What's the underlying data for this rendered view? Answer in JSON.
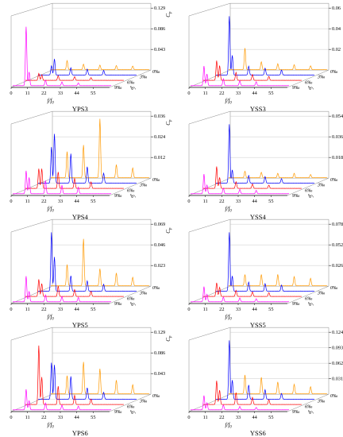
{
  "figure": {
    "x_axis_label": "f/f",
    "x_axis_label_sub": "0",
    "z_axis_label": "δ",
    "z_axis_label_sub": "j",
    "y_axis_label": "C",
    "y_axis_label_sub": "p",
    "x_ticks": [
      "0",
      "11",
      "22",
      "33",
      "44",
      "55"
    ],
    "depth_labels": [
      "0‰",
      "3‰",
      "6‰",
      "9‰"
    ],
    "series_colors": [
      "#ff9900",
      "#0000ff",
      "#ff0000",
      "#ff00ff"
    ]
  },
  "chart_data": [
    {
      "type": "line",
      "title": "YPS3",
      "y_ticks": [
        "0.043",
        "0.086",
        "0.129"
      ],
      "ylim": [
        0,
        0.129
      ],
      "xlim": [
        0,
        66
      ],
      "series": [
        {
          "name": "0‰",
          "peaks": [
            [
              11,
              0.02
            ],
            [
              22,
              0.012
            ],
            [
              33,
              0.01
            ],
            [
              44,
              0.009
            ],
            [
              55,
              0.008
            ]
          ]
        },
        {
          "name": "3‰",
          "peaks": [
            [
              9,
              0.02
            ],
            [
              11,
              0.035
            ],
            [
              22,
              0.016
            ],
            [
              33,
              0.013
            ],
            [
              44,
              0.01
            ]
          ]
        },
        {
          "name": "6‰",
          "peaks": [
            [
              9,
              0.015
            ],
            [
              11,
              0.012
            ],
            [
              22,
              0.01
            ],
            [
              33,
              0.008
            ],
            [
              44,
              0.006
            ]
          ]
        },
        {
          "name": "9‰",
          "peaks": [
            [
              9,
              0.129
            ],
            [
              11,
              0.03
            ],
            [
              22,
              0.012
            ],
            [
              33,
              0.008
            ],
            [
              44,
              0.006
            ]
          ]
        }
      ]
    },
    {
      "type": "line",
      "title": "YSS3",
      "y_ticks": [
        "0.02",
        "0.04",
        "0.06"
      ],
      "ylim": [
        0,
        0.06
      ],
      "xlim": [
        0,
        66
      ],
      "series": [
        {
          "name": "0‰",
          "peaks": [
            [
              11,
              0.022
            ],
            [
              22,
              0.008
            ],
            [
              33,
              0.006
            ],
            [
              44,
              0.005
            ],
            [
              55,
              0.004
            ]
          ]
        },
        {
          "name": "3‰",
          "peaks": [
            [
              9,
              0.06
            ],
            [
              11,
              0.02
            ],
            [
              22,
              0.009
            ],
            [
              33,
              0.007
            ],
            [
              44,
              0.005
            ]
          ]
        },
        {
          "name": "6‰",
          "peaks": [
            [
              9,
              0.02
            ],
            [
              11,
              0.015
            ],
            [
              22,
              0.008
            ],
            [
              33,
              0.006
            ],
            [
              44,
              0.004
            ]
          ]
        },
        {
          "name": "9‰",
          "peaks": [
            [
              9,
              0.02
            ],
            [
              11,
              0.012
            ],
            [
              22,
              0.007
            ],
            [
              33,
              0.005
            ],
            [
              44,
              0.004
            ]
          ]
        }
      ]
    },
    {
      "type": "line",
      "title": "YPS4",
      "y_ticks": [
        "0.012",
        "0.024",
        "0.036"
      ],
      "ylim": [
        0,
        0.036
      ],
      "xlim": [
        0,
        66
      ],
      "series": [
        {
          "name": "0‰",
          "peaks": [
            [
              11,
              0.016
            ],
            [
              22,
              0.02
            ],
            [
              33,
              0.036
            ],
            [
              44,
              0.008
            ],
            [
              55,
              0.006
            ]
          ]
        },
        {
          "name": "3‰",
          "peaks": [
            [
              9,
              0.022
            ],
            [
              11,
              0.03
            ],
            [
              22,
              0.018
            ],
            [
              33,
              0.01
            ],
            [
              44,
              0.006
            ]
          ]
        },
        {
          "name": "6‰",
          "peaks": [
            [
              9,
              0.012
            ],
            [
              11,
              0.012
            ],
            [
              22,
              0.01
            ],
            [
              33,
              0.006
            ],
            [
              44,
              0.004
            ]
          ]
        },
        {
          "name": "9‰",
          "peaks": [
            [
              9,
              0.014
            ],
            [
              11,
              0.01
            ],
            [
              22,
              0.008
            ],
            [
              33,
              0.005
            ],
            [
              44,
              0.004
            ]
          ]
        }
      ]
    },
    {
      "type": "line",
      "title": "YSS4",
      "y_ticks": [
        "0.018",
        "0.036",
        "0.054"
      ],
      "ylim": [
        0,
        0.054
      ],
      "xlim": [
        0,
        66
      ],
      "series": [
        {
          "name": "0‰",
          "peaks": [
            [
              11,
              0.006
            ],
            [
              22,
              0.005
            ],
            [
              33,
              0.004
            ],
            [
              44,
              0.004
            ],
            [
              55,
              0.003
            ]
          ]
        },
        {
          "name": "3‰",
          "peaks": [
            [
              9,
              0.054
            ],
            [
              11,
              0.012
            ],
            [
              22,
              0.007
            ],
            [
              33,
              0.006
            ],
            [
              44,
              0.004
            ]
          ]
        },
        {
          "name": "6‰",
          "peaks": [
            [
              9,
              0.02
            ],
            [
              11,
              0.01
            ],
            [
              22,
              0.006
            ],
            [
              33,
              0.004
            ],
            [
              44,
              0.003
            ]
          ]
        },
        {
          "name": "9‰",
          "peaks": [
            [
              9,
              0.018
            ],
            [
              11,
              0.008
            ],
            [
              22,
              0.005
            ],
            [
              33,
              0.004
            ],
            [
              44,
              0.003
            ]
          ]
        }
      ]
    },
    {
      "type": "line",
      "title": "YPS5",
      "y_ticks": [
        "0.023",
        "0.046",
        "0.069"
      ],
      "ylim": [
        0,
        0.069
      ],
      "xlim": [
        0,
        66
      ],
      "series": [
        {
          "name": "0‰",
          "peaks": [
            [
              11,
              0.025
            ],
            [
              22,
              0.055
            ],
            [
              33,
              0.02
            ],
            [
              44,
              0.015
            ],
            [
              55,
              0.01
            ]
          ]
        },
        {
          "name": "3‰",
          "peaks": [
            [
              9,
              0.069
            ],
            [
              11,
              0.04
            ],
            [
              22,
              0.018
            ],
            [
              33,
              0.012
            ],
            [
              44,
              0.008
            ]
          ]
        },
        {
          "name": "6‰",
          "peaks": [
            [
              9,
              0.02
            ],
            [
              11,
              0.015
            ],
            [
              22,
              0.012
            ],
            [
              33,
              0.008
            ],
            [
              44,
              0.006
            ]
          ]
        },
        {
          "name": "9‰",
          "peaks": [
            [
              9,
              0.03
            ],
            [
              11,
              0.012
            ],
            [
              22,
              0.008
            ],
            [
              33,
              0.006
            ],
            [
              44,
              0.005
            ]
          ]
        }
      ]
    },
    {
      "type": "line",
      "title": "YSS5",
      "y_ticks": [
        "0.026",
        "0.052",
        "0.078"
      ],
      "ylim": [
        0,
        0.078
      ],
      "xlim": [
        0,
        66
      ],
      "series": [
        {
          "name": "0‰",
          "peaks": [
            [
              11,
              0.015
            ],
            [
              22,
              0.015
            ],
            [
              33,
              0.015
            ],
            [
              44,
              0.012
            ],
            [
              55,
              0.01
            ]
          ]
        },
        {
          "name": "3‰",
          "peaks": [
            [
              9,
              0.078
            ],
            [
              11,
              0.02
            ],
            [
              22,
              0.012
            ],
            [
              33,
              0.01
            ],
            [
              44,
              0.008
            ]
          ]
        },
        {
          "name": "6‰",
          "peaks": [
            [
              9,
              0.018
            ],
            [
              11,
              0.012
            ],
            [
              22,
              0.008
            ],
            [
              33,
              0.006
            ],
            [
              44,
              0.005
            ]
          ]
        },
        {
          "name": "9‰",
          "peaks": [
            [
              9,
              0.02
            ],
            [
              11,
              0.01
            ],
            [
              22,
              0.006
            ],
            [
              33,
              0.005
            ],
            [
              44,
              0.004
            ]
          ]
        }
      ]
    },
    {
      "type": "line",
      "title": "YPS6",
      "y_ticks": [
        "0.043",
        "0.086",
        "0.129"
      ],
      "ylim": [
        0,
        0.129
      ],
      "xlim": [
        0,
        66
      ],
      "series": [
        {
          "name": "0‰",
          "peaks": [
            [
              11,
              0.04
            ],
            [
              22,
              0.07
            ],
            [
              33,
              0.055
            ],
            [
              44,
              0.03
            ],
            [
              55,
              0.02
            ]
          ]
        },
        {
          "name": "3‰",
          "peaks": [
            [
              9,
              0.08
            ],
            [
              11,
              0.075
            ],
            [
              22,
              0.05
            ],
            [
              33,
              0.025
            ],
            [
              44,
              0.015
            ]
          ]
        },
        {
          "name": "6‰",
          "peaks": [
            [
              9,
              0.129
            ],
            [
              11,
              0.06
            ],
            [
              22,
              0.04
            ],
            [
              33,
              0.02
            ],
            [
              44,
              0.012
            ]
          ]
        },
        {
          "name": "9‰",
          "peaks": [
            [
              9,
              0.045
            ],
            [
              11,
              0.02
            ],
            [
              22,
              0.015
            ],
            [
              33,
              0.01
            ],
            [
              44,
              0.008
            ]
          ]
        }
      ]
    },
    {
      "type": "line",
      "title": "YSS6",
      "y_ticks": [
        "0.031",
        "0.062",
        "0.093",
        "0.124"
      ],
      "ylim": [
        0,
        0.124
      ],
      "xlim": [
        0,
        66
      ],
      "series": [
        {
          "name": "0‰",
          "peaks": [
            [
              11,
              0.04
            ],
            [
              22,
              0.035
            ],
            [
              33,
              0.025
            ],
            [
              44,
              0.02
            ],
            [
              55,
              0.015
            ]
          ]
        },
        {
          "name": "3‰",
          "peaks": [
            [
              9,
              0.124
            ],
            [
              11,
              0.04
            ],
            [
              22,
              0.03
            ],
            [
              33,
              0.02
            ],
            [
              44,
              0.012
            ]
          ]
        },
        {
          "name": "6‰",
          "peaks": [
            [
              9,
              0.05
            ],
            [
              11,
              0.03
            ],
            [
              22,
              0.025
            ],
            [
              33,
              0.015
            ],
            [
              44,
              0.01
            ]
          ]
        },
        {
          "name": "9‰",
          "peaks": [
            [
              9,
              0.03
            ],
            [
              11,
              0.015
            ],
            [
              22,
              0.01
            ],
            [
              33,
              0.007
            ],
            [
              44,
              0.005
            ]
          ]
        }
      ]
    }
  ]
}
